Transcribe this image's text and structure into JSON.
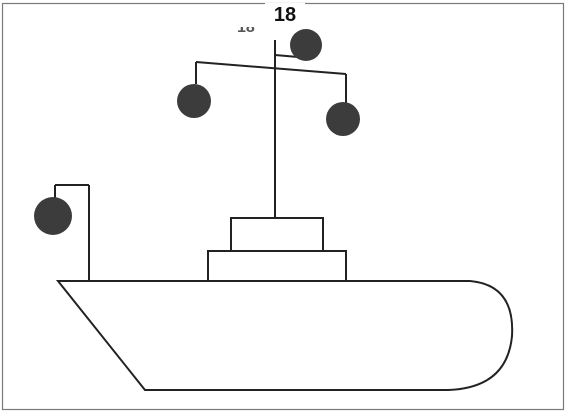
{
  "page": {
    "number": "18",
    "partial_label": "18"
  },
  "colors": {
    "background": "#ffffff",
    "line": "#222222",
    "ball": "#3c3c3c",
    "frame": "#7a7a7a"
  },
  "icons": {
    "drawing": "ship-with-hanging-balls"
  }
}
